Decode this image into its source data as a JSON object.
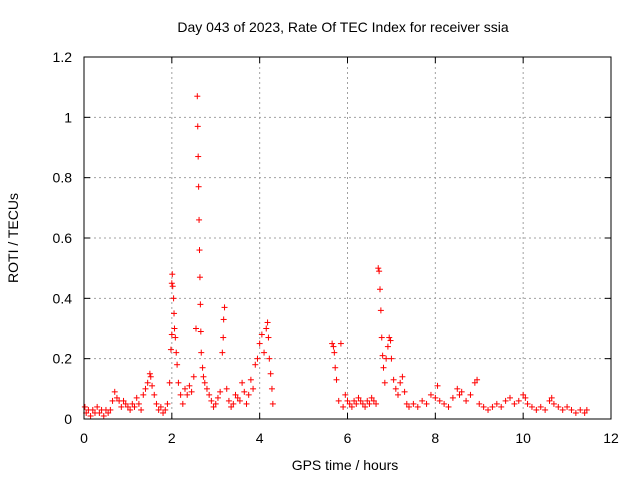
{
  "chart_data": {
    "type": "scatter",
    "title": "Day 043 of 2023, Rate Of TEC Index for receiver ssia",
    "xlabel": "GPS time / hours",
    "ylabel": "ROTI / TECUs",
    "xlim": [
      0,
      12
    ],
    "ylim": [
      0,
      1.2
    ],
    "xticks": [
      0,
      2,
      4,
      6,
      8,
      10,
      12
    ],
    "yticks": [
      0,
      0.2,
      0.4,
      0.6,
      0.8,
      1,
      1.2
    ],
    "xtick_labels": [
      "0",
      "2",
      "4",
      "6",
      "8",
      "10",
      "12"
    ],
    "ytick_labels": [
      "0",
      "0.2",
      "0.4",
      "0.6",
      "0.8",
      "1",
      "1.2"
    ],
    "grid": true,
    "marker": "plus",
    "color": "#ff0000",
    "series": [
      {
        "points": [
          [
            0.02,
            0.04
          ],
          [
            0.05,
            0.02
          ],
          [
            0.1,
            0.03
          ],
          [
            0.15,
            0.01
          ],
          [
            0.2,
            0.03
          ],
          [
            0.25,
            0.02
          ],
          [
            0.3,
            0.04
          ],
          [
            0.35,
            0.02
          ],
          [
            0.4,
            0.03
          ],
          [
            0.45,
            0.01
          ],
          [
            0.5,
            0.03
          ],
          [
            0.55,
            0.02
          ],
          [
            0.6,
            0.03
          ],
          [
            0.65,
            0.06
          ],
          [
            0.7,
            0.09
          ],
          [
            0.75,
            0.07
          ],
          [
            0.8,
            0.06
          ],
          [
            0.85,
            0.04
          ],
          [
            0.9,
            0.06
          ],
          [
            0.95,
            0.05
          ],
          [
            1.0,
            0.04
          ],
          [
            1.05,
            0.03
          ],
          [
            1.1,
            0.05
          ],
          [
            1.15,
            0.04
          ],
          [
            1.2,
            0.07
          ],
          [
            1.25,
            0.05
          ],
          [
            1.3,
            0.03
          ],
          [
            1.35,
            0.08
          ],
          [
            1.4,
            0.1
          ],
          [
            1.45,
            0.12
          ],
          [
            1.5,
            0.15
          ],
          [
            1.52,
            0.14
          ],
          [
            1.55,
            0.11
          ],
          [
            1.6,
            0.08
          ],
          [
            1.65,
            0.05
          ],
          [
            1.7,
            0.03
          ],
          [
            1.75,
            0.04
          ],
          [
            1.8,
            0.02
          ],
          [
            1.85,
            0.03
          ],
          [
            1.9,
            0.05
          ],
          [
            1.95,
            0.12
          ],
          [
            1.98,
            0.23
          ],
          [
            2.0,
            0.28
          ],
          [
            2.0,
            0.45
          ],
          [
            2.01,
            0.48
          ],
          [
            2.02,
            0.44
          ],
          [
            2.04,
            0.4
          ],
          [
            2.05,
            0.35
          ],
          [
            2.06,
            0.3
          ],
          [
            2.08,
            0.27
          ],
          [
            2.1,
            0.22
          ],
          [
            2.12,
            0.18
          ],
          [
            2.15,
            0.12
          ],
          [
            2.2,
            0.08
          ],
          [
            2.25,
            0.05
          ],
          [
            2.3,
            0.1
          ],
          [
            2.35,
            0.08
          ],
          [
            2.4,
            0.11
          ],
          [
            2.45,
            0.09
          ],
          [
            2.5,
            0.14
          ],
          [
            2.55,
            0.3
          ],
          [
            2.58,
            1.07
          ],
          [
            2.59,
            0.97
          ],
          [
            2.6,
            0.87
          ],
          [
            2.61,
            0.77
          ],
          [
            2.62,
            0.66
          ],
          [
            2.63,
            0.56
          ],
          [
            2.64,
            0.47
          ],
          [
            2.65,
            0.38
          ],
          [
            2.66,
            0.29
          ],
          [
            2.67,
            0.22
          ],
          [
            2.7,
            0.17
          ],
          [
            2.72,
            0.14
          ],
          [
            2.75,
            0.12
          ],
          [
            2.8,
            0.1
          ],
          [
            2.85,
            0.08
          ],
          [
            2.9,
            0.06
          ],
          [
            2.95,
            0.04
          ],
          [
            3.0,
            0.05
          ],
          [
            3.05,
            0.07
          ],
          [
            3.1,
            0.09
          ],
          [
            3.15,
            0.22
          ],
          [
            3.17,
            0.27
          ],
          [
            3.18,
            0.33
          ],
          [
            3.2,
            0.37
          ],
          [
            3.25,
            0.1
          ],
          [
            3.3,
            0.06
          ],
          [
            3.35,
            0.04
          ],
          [
            3.4,
            0.05
          ],
          [
            3.45,
            0.08
          ],
          [
            3.5,
            0.07
          ],
          [
            3.55,
            0.06
          ],
          [
            3.6,
            0.12
          ],
          [
            3.65,
            0.09
          ],
          [
            3.7,
            0.05
          ],
          [
            3.75,
            0.08
          ],
          [
            3.8,
            0.13
          ],
          [
            3.85,
            0.1
          ],
          [
            3.9,
            0.18
          ],
          [
            3.95,
            0.2
          ],
          [
            4.0,
            0.25
          ],
          [
            4.05,
            0.28
          ],
          [
            4.1,
            0.22
          ],
          [
            4.15,
            0.3
          ],
          [
            4.18,
            0.32
          ],
          [
            4.2,
            0.27
          ],
          [
            4.22,
            0.2
          ],
          [
            4.25,
            0.15
          ],
          [
            4.28,
            0.1
          ],
          [
            4.3,
            0.05
          ],
          [
            5.65,
            0.25
          ],
          [
            5.68,
            0.24
          ],
          [
            5.7,
            0.22
          ],
          [
            5.72,
            0.17
          ],
          [
            5.75,
            0.13
          ],
          [
            5.8,
            0.06
          ],
          [
            5.85,
            0.25
          ],
          [
            5.9,
            0.04
          ],
          [
            5.95,
            0.08
          ],
          [
            6.0,
            0.06
          ],
          [
            6.05,
            0.05
          ],
          [
            6.1,
            0.04
          ],
          [
            6.15,
            0.06
          ],
          [
            6.2,
            0.05
          ],
          [
            6.25,
            0.07
          ],
          [
            6.3,
            0.06
          ],
          [
            6.35,
            0.05
          ],
          [
            6.4,
            0.04
          ],
          [
            6.45,
            0.06
          ],
          [
            6.5,
            0.05
          ],
          [
            6.55,
            0.07
          ],
          [
            6.6,
            0.06
          ],
          [
            6.65,
            0.05
          ],
          [
            6.7,
            0.5
          ],
          [
            6.72,
            0.49
          ],
          [
            6.74,
            0.43
          ],
          [
            6.76,
            0.36
          ],
          [
            6.78,
            0.27
          ],
          [
            6.8,
            0.21
          ],
          [
            6.82,
            0.17
          ],
          [
            6.85,
            0.12
          ],
          [
            6.88,
            0.2
          ],
          [
            6.92,
            0.24
          ],
          [
            6.95,
            0.27
          ],
          [
            6.98,
            0.26
          ],
          [
            7.0,
            0.2
          ],
          [
            7.05,
            0.13
          ],
          [
            7.1,
            0.1
          ],
          [
            7.15,
            0.08
          ],
          [
            7.2,
            0.12
          ],
          [
            7.25,
            0.14
          ],
          [
            7.3,
            0.09
          ],
          [
            7.35,
            0.05
          ],
          [
            7.4,
            0.04
          ],
          [
            7.5,
            0.05
          ],
          [
            7.6,
            0.04
          ],
          [
            7.7,
            0.06
          ],
          [
            7.8,
            0.05
          ],
          [
            7.9,
            0.08
          ],
          [
            8.0,
            0.07
          ],
          [
            8.05,
            0.11
          ],
          [
            8.1,
            0.06
          ],
          [
            8.2,
            0.05
          ],
          [
            8.3,
            0.04
          ],
          [
            8.4,
            0.07
          ],
          [
            8.5,
            0.1
          ],
          [
            8.55,
            0.08
          ],
          [
            8.6,
            0.09
          ],
          [
            8.7,
            0.06
          ],
          [
            8.8,
            0.08
          ],
          [
            8.9,
            0.12
          ],
          [
            8.95,
            0.13
          ],
          [
            9.0,
            0.05
          ],
          [
            9.1,
            0.04
          ],
          [
            9.2,
            0.03
          ],
          [
            9.3,
            0.04
          ],
          [
            9.4,
            0.05
          ],
          [
            9.5,
            0.04
          ],
          [
            9.6,
            0.06
          ],
          [
            9.7,
            0.07
          ],
          [
            9.8,
            0.05
          ],
          [
            9.9,
            0.06
          ],
          [
            10.0,
            0.08
          ],
          [
            10.05,
            0.07
          ],
          [
            10.1,
            0.05
          ],
          [
            10.2,
            0.04
          ],
          [
            10.3,
            0.03
          ],
          [
            10.4,
            0.04
          ],
          [
            10.5,
            0.03
          ],
          [
            10.6,
            0.06
          ],
          [
            10.65,
            0.07
          ],
          [
            10.7,
            0.05
          ],
          [
            10.8,
            0.04
          ],
          [
            10.9,
            0.03
          ],
          [
            11.0,
            0.04
          ],
          [
            11.1,
            0.03
          ],
          [
            11.2,
            0.02
          ],
          [
            11.3,
            0.03
          ],
          [
            11.4,
            0.02
          ],
          [
            11.45,
            0.03
          ]
        ]
      }
    ]
  }
}
